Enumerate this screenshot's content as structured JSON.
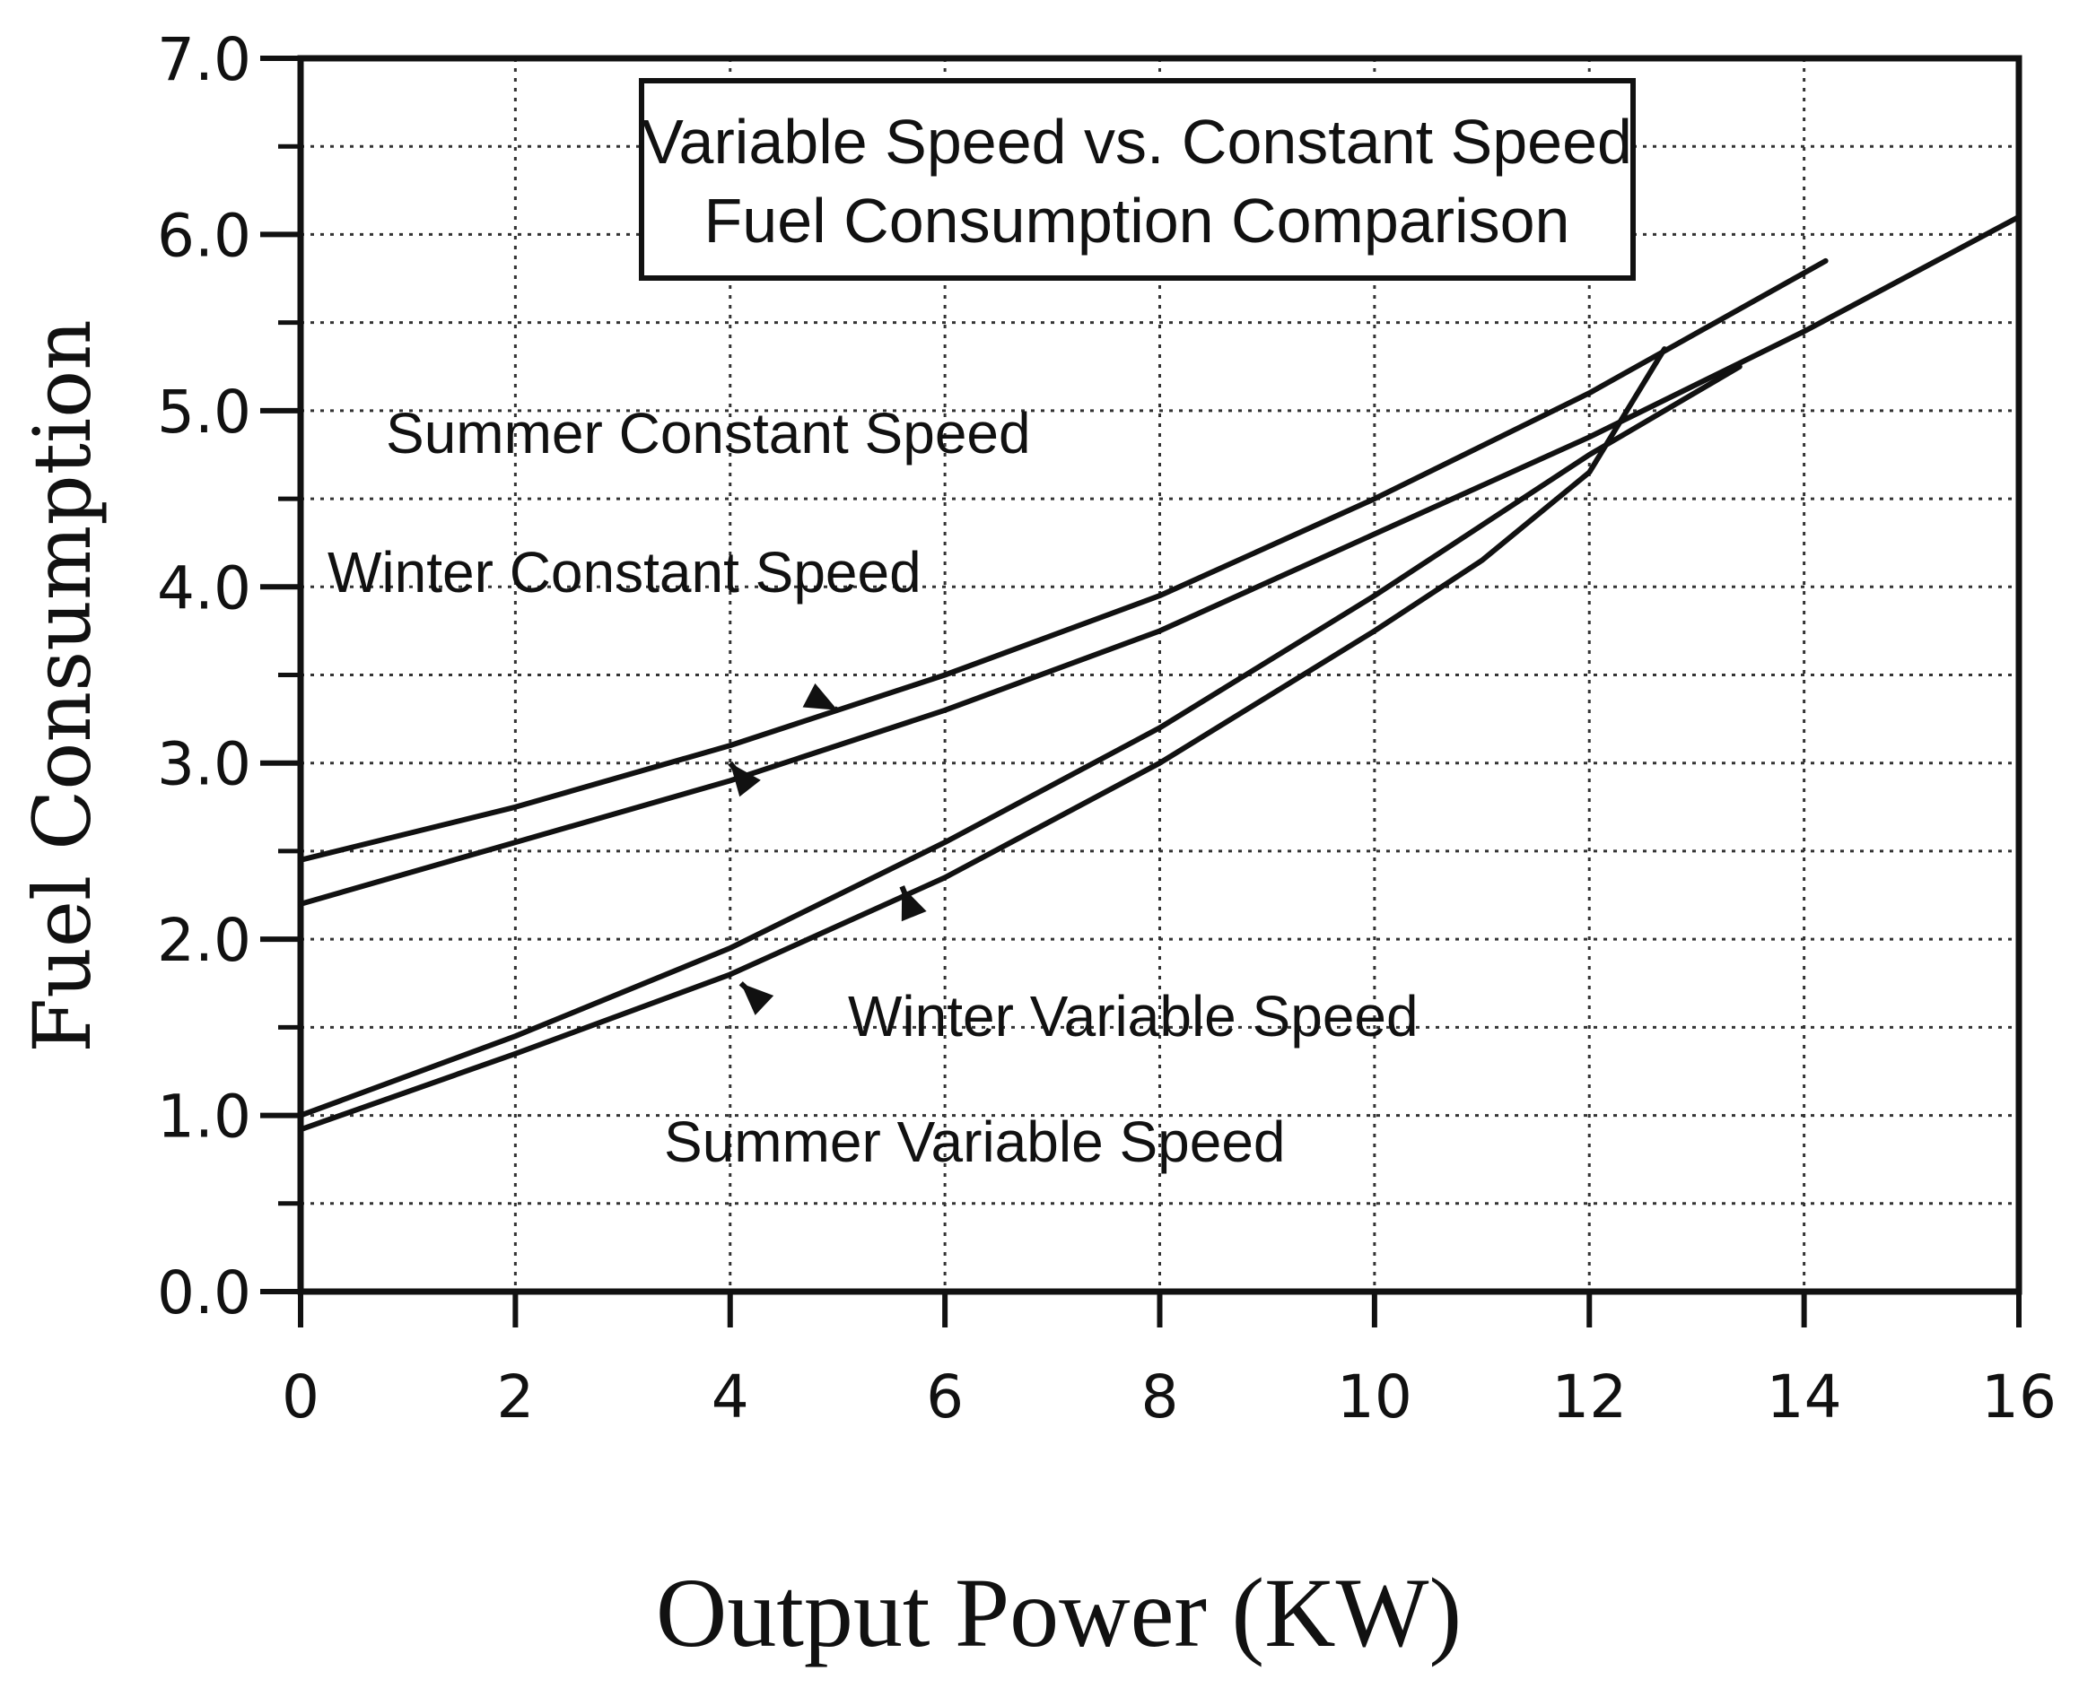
{
  "chart_data": {
    "type": "line",
    "title_lines": [
      "Variable Speed vs. Constant Speed",
      "Fuel Consumption Comparison"
    ],
    "xlabel": "Output Power (KW)",
    "ylabel": "Fuel Consumption",
    "xlim": [
      0,
      16
    ],
    "ylim": [
      0,
      7
    ],
    "xticks": [
      0,
      2,
      4,
      6,
      8,
      10,
      12,
      14,
      16
    ],
    "xtick_labels": [
      "0",
      "2",
      "4",
      "6",
      "8",
      "10",
      "12",
      "14",
      "16"
    ],
    "yticks": [
      0,
      1,
      2,
      3,
      4,
      5,
      6,
      7
    ],
    "ytick_labels": [
      "0.0",
      "1.0",
      "2.0",
      "3.0",
      "4.0",
      "5.0",
      "6.0",
      "7.0"
    ],
    "grid": true,
    "series": [
      {
        "name": "Summer Constant Speed",
        "x": [
          0,
          2,
          4,
          6,
          8,
          10,
          12,
          14.2
        ],
        "y": [
          2.45,
          2.75,
          3.1,
          3.5,
          3.95,
          4.5,
          5.1,
          5.85
        ]
      },
      {
        "name": "Winter Constant Speed",
        "x": [
          0,
          2,
          4,
          6,
          8,
          10,
          12,
          14,
          16
        ],
        "y": [
          2.2,
          2.55,
          2.9,
          3.3,
          3.75,
          4.3,
          4.85,
          5.45,
          6.1
        ]
      },
      {
        "name": "Winter Variable Speed",
        "x": [
          0,
          2,
          4,
          6,
          8,
          10,
          12,
          13.4
        ],
        "y": [
          1.0,
          1.45,
          1.95,
          2.55,
          3.2,
          3.95,
          4.75,
          5.25
        ]
      },
      {
        "name": "Summer Variable Speed",
        "x": [
          0,
          2,
          4,
          6,
          8,
          10,
          11,
          12,
          12.7
        ],
        "y": [
          0.92,
          1.35,
          1.8,
          2.35,
          3.0,
          3.75,
          4.15,
          4.65,
          5.35
        ]
      }
    ],
    "annotations": [
      {
        "text": "Summer Constant Speed",
        "points_to_series": "Summer Constant Speed",
        "target_x": 5.0,
        "target_y": 3.3
      },
      {
        "text": "Winter Constant Speed",
        "points_to_series": "Winter Constant Speed",
        "target_x": 4.0,
        "target_y": 3.0
      },
      {
        "text": "Winter Variable Speed",
        "points_to_series": "Winter Variable Speed",
        "target_x": 5.6,
        "target_y": 2.3
      },
      {
        "text": "Summer Variable Speed",
        "points_to_series": "Summer Variable Speed",
        "target_x": 4.1,
        "target_y": 1.75
      }
    ]
  }
}
